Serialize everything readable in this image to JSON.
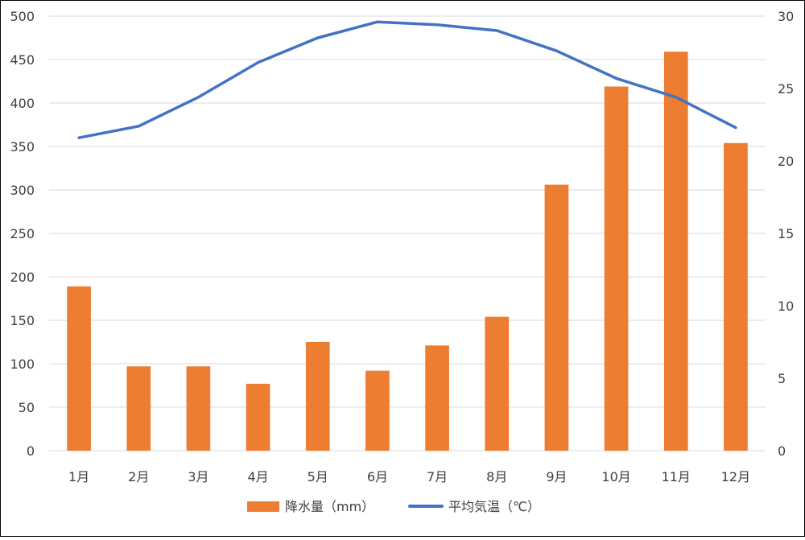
{
  "chart_data": {
    "type": "bar+line",
    "categories": [
      "1月",
      "2月",
      "3月",
      "4月",
      "5月",
      "6月",
      "7月",
      "8月",
      "9月",
      "10月",
      "11月",
      "12月"
    ],
    "series": [
      {
        "name": "降水量（mm）",
        "type": "bar",
        "axis": "left",
        "color": "#ED7D31",
        "values": [
          189,
          97,
          97,
          77,
          125,
          92,
          121,
          154,
          306,
          419,
          459,
          354
        ]
      },
      {
        "name": "平均気温（℃）",
        "type": "line",
        "axis": "right",
        "color": "#4472C4",
        "values": [
          21.6,
          22.4,
          24.4,
          26.8,
          28.5,
          29.6,
          29.4,
          29.0,
          27.6,
          25.7,
          24.4,
          22.3
        ]
      }
    ],
    "y_left": {
      "min": 0,
      "max": 500,
      "step": 50,
      "ticks": [
        "0",
        "50",
        "100",
        "150",
        "200",
        "250",
        "300",
        "350",
        "400",
        "450",
        "500"
      ]
    },
    "y_right": {
      "min": 0,
      "max": 30,
      "step": 5,
      "ticks": [
        "0",
        "5",
        "10",
        "15",
        "20",
        "25",
        "30"
      ]
    },
    "grid": true,
    "legend": {
      "position": "bottom"
    }
  }
}
